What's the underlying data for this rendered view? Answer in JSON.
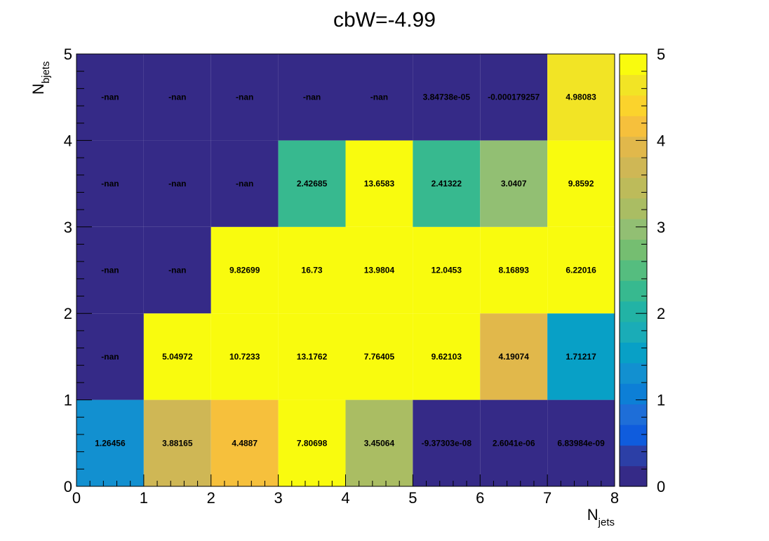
{
  "chart_data": {
    "type": "heatmap",
    "title": "cbW=-4.99",
    "xlabel": {
      "main": "N",
      "sub": "jets"
    },
    "ylabel": {
      "main": "N",
      "sub": "bjets"
    },
    "xlim": [
      0,
      8
    ],
    "ylim": [
      0,
      5
    ],
    "x_ticks": [
      "0",
      "1",
      "2",
      "3",
      "4",
      "5",
      "6",
      "7",
      "8"
    ],
    "y_ticks": [
      "0",
      "1",
      "2",
      "3",
      "4",
      "5"
    ],
    "colorbar": {
      "min": 0,
      "max": 5,
      "ticks": [
        "0",
        "1",
        "2",
        "3",
        "4",
        "5"
      ]
    },
    "cells": [
      [
        {
          "text": "1.26456",
          "value": 1.26456
        },
        {
          "text": "3.88165",
          "value": 3.88165
        },
        {
          "text": "4.4887",
          "value": 4.4887
        },
        {
          "text": "7.80698",
          "value": 7.80698
        },
        {
          "text": "3.45064",
          "value": 3.45064
        },
        {
          "text": "-9.37303e-08",
          "value": -9.37303e-08
        },
        {
          "text": "2.6041e-06",
          "value": 2.6041e-06
        },
        {
          "text": "6.83984e-09",
          "value": 6.83984e-09
        }
      ],
      [
        {
          "text": "-nan",
          "value": null
        },
        {
          "text": "5.04972",
          "value": 5.04972
        },
        {
          "text": "10.7233",
          "value": 10.7233
        },
        {
          "text": "13.1762",
          "value": 13.1762
        },
        {
          "text": "7.76405",
          "value": 7.76405
        },
        {
          "text": "9.62103",
          "value": 9.62103
        },
        {
          "text": "4.19074",
          "value": 4.19074
        },
        {
          "text": "1.71217",
          "value": 1.71217
        }
      ],
      [
        {
          "text": "-nan",
          "value": null
        },
        {
          "text": "-nan",
          "value": null
        },
        {
          "text": "9.82699",
          "value": 9.82699
        },
        {
          "text": "16.73",
          "value": 16.73
        },
        {
          "text": "13.9804",
          "value": 13.9804
        },
        {
          "text": "12.0453",
          "value": 12.0453
        },
        {
          "text": "8.16893",
          "value": 8.16893
        },
        {
          "text": "6.22016",
          "value": 6.22016
        }
      ],
      [
        {
          "text": "-nan",
          "value": null
        },
        {
          "text": "-nan",
          "value": null
        },
        {
          "text": "-nan",
          "value": null
        },
        {
          "text": "2.42685",
          "value": 2.42685
        },
        {
          "text": "13.6583",
          "value": 13.6583
        },
        {
          "text": "2.41322",
          "value": 2.41322
        },
        {
          "text": "3.0407",
          "value": 3.0407
        },
        {
          "text": "9.8592",
          "value": 9.8592
        }
      ],
      [
        {
          "text": "-nan",
          "value": null
        },
        {
          "text": "-nan",
          "value": null
        },
        {
          "text": "-nan",
          "value": null
        },
        {
          "text": "-nan",
          "value": null
        },
        {
          "text": "-nan",
          "value": null
        },
        {
          "text": "3.84738e-05",
          "value": 3.84738e-05
        },
        {
          "text": "-0.000179257",
          "value": -0.000179257
        },
        {
          "text": "4.98083",
          "value": 4.98083
        }
      ]
    ],
    "palette": [
      "#352a87",
      "#2c3fa6",
      "#0f5cdd",
      "#1e6ed8",
      "#0d7fd6",
      "#1290d0",
      "#08a0c6",
      "#1aacb7",
      "#22b3a5",
      "#37b98f",
      "#55bd7f",
      "#75be71",
      "#92bf73",
      "#aabd63",
      "#bdbb5a",
      "#cfb755",
      "#e1b84b",
      "#f6c03c",
      "#fbd32c",
      "#f2e425",
      "#f9fb0e"
    ]
  }
}
